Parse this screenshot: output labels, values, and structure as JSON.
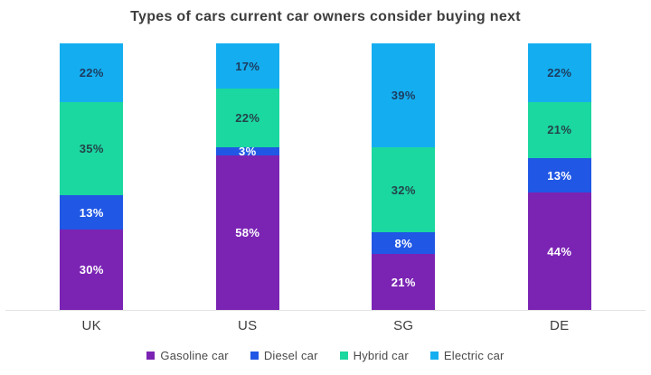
{
  "chart_data": {
    "type": "bar",
    "stacked": true,
    "title": "Types of cars current car owners consider buying next",
    "categories": [
      "UK",
      "US",
      "SG",
      "DE"
    ],
    "series": [
      {
        "name": "Gasoline car",
        "color": "#7b24b4",
        "label_color": "#ffffff",
        "values": [
          30,
          58,
          21,
          44
        ]
      },
      {
        "name": "Diesel car",
        "color": "#2057e5",
        "label_color": "#ffffff",
        "values": [
          13,
          3,
          8,
          13
        ]
      },
      {
        "name": "Hybrid car",
        "color": "#1bd7a0",
        "label_color": "#24444a",
        "values": [
          35,
          22,
          32,
          21
        ]
      },
      {
        "name": "Electric car",
        "color": "#14aef0",
        "label_color": "#1d3c5e",
        "values": [
          22,
          17,
          39,
          22
        ]
      }
    ],
    "value_format": "percent",
    "ylim": [
      0,
      100
    ],
    "grid": false,
    "legend_position": "bottom",
    "axis_line_color": "#e3e3e3"
  }
}
